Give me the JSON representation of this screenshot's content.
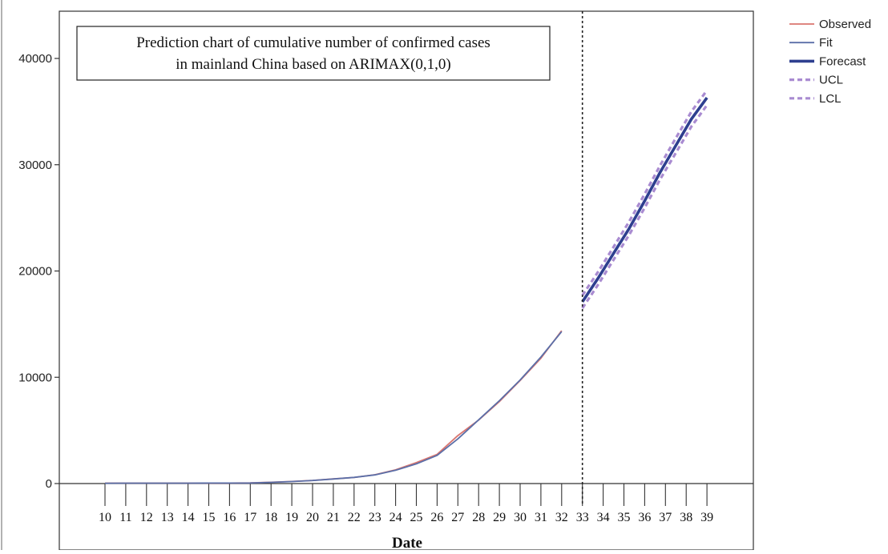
{
  "chart_data": {
    "type": "line",
    "title_lines": [
      "Prediction chart of cumulative number of confirmed cases",
      "in mainland China based on ARIMAX(0,1,0)"
    ],
    "xlabel": "Date",
    "ylabel": "",
    "x": [
      10,
      11,
      12,
      13,
      14,
      15,
      16,
      17,
      18,
      19,
      20,
      21,
      22,
      23,
      24,
      25,
      26,
      27,
      28,
      29,
      30,
      31,
      32,
      33,
      34,
      35,
      36,
      37,
      38,
      39
    ],
    "y_ticks": [
      0,
      10000,
      20000,
      30000,
      40000
    ],
    "ylim": [
      0,
      44000
    ],
    "forecast_start": 33,
    "grid": false,
    "legend_position": "right",
    "series": [
      {
        "name": "Observed",
        "color": "#d9756f",
        "style": "solid",
        "points": [
          [
            10,
            41
          ],
          [
            11,
            41
          ],
          [
            12,
            41
          ],
          [
            13,
            41
          ],
          [
            14,
            41
          ],
          [
            15,
            41
          ],
          [
            16,
            45
          ],
          [
            17,
            62
          ],
          [
            18,
            121
          ],
          [
            19,
            198
          ],
          [
            20,
            291
          ],
          [
            21,
            440
          ],
          [
            22,
            571
          ],
          [
            23,
            830
          ],
          [
            24,
            1287
          ],
          [
            25,
            1975
          ],
          [
            26,
            2744
          ],
          [
            27,
            4515
          ],
          [
            28,
            5974
          ],
          [
            29,
            7711
          ],
          [
            30,
            9692
          ],
          [
            31,
            11791
          ],
          [
            32,
            14380
          ]
        ]
      },
      {
        "name": "Fit",
        "color": "#5b6fa8",
        "style": "solid",
        "points": [
          [
            10,
            30
          ],
          [
            11,
            35
          ],
          [
            12,
            38
          ],
          [
            13,
            40
          ],
          [
            14,
            40
          ],
          [
            15,
            42
          ],
          [
            16,
            44
          ],
          [
            17,
            55
          ],
          [
            18,
            110
          ],
          [
            19,
            190
          ],
          [
            20,
            290
          ],
          [
            21,
            430
          ],
          [
            22,
            580
          ],
          [
            23,
            810
          ],
          [
            24,
            1250
          ],
          [
            25,
            1850
          ],
          [
            26,
            2650
          ],
          [
            27,
            4200
          ],
          [
            28,
            6000
          ],
          [
            29,
            7800
          ],
          [
            30,
            9750
          ],
          [
            31,
            11900
          ],
          [
            32,
            14300
          ]
        ]
      },
      {
        "name": "Forecast",
        "color": "#2e3f8f",
        "style": "solid-thick",
        "points": [
          [
            33,
            17100
          ],
          [
            34,
            19300
          ],
          [
            35,
            21650
          ],
          [
            36,
            24000
          ],
          [
            37,
            26600
          ],
          [
            38,
            29300
          ],
          [
            39,
            31800
          ],
          [
            40,
            34300
          ],
          [
            41,
            36300
          ]
        ]
      },
      {
        "name": "UCL",
        "color": "#a98bd1",
        "style": "dashed",
        "points": [
          [
            33,
            17700
          ],
          [
            34,
            19900
          ],
          [
            35,
            22250
          ],
          [
            36,
            24650
          ],
          [
            37,
            27250
          ],
          [
            38,
            29950
          ],
          [
            39,
            32500
          ],
          [
            40,
            35000
          ],
          [
            41,
            37000
          ]
        ]
      },
      {
        "name": "LCL",
        "color": "#a98bd1",
        "style": "dashed",
        "points": [
          [
            33,
            16500
          ],
          [
            34,
            18700
          ],
          [
            35,
            21050
          ],
          [
            36,
            23400
          ],
          [
            37,
            25950
          ],
          [
            38,
            28650
          ],
          [
            39,
            31100
          ],
          [
            40,
            33600
          ],
          [
            41,
            35600
          ]
        ]
      }
    ]
  }
}
